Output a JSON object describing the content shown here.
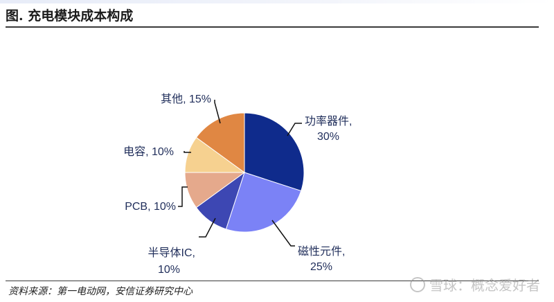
{
  "title": "图. 充电模块成本构成",
  "source": "资料来源：第一电动网，安信证券研究中心",
  "watermark": "雪球：概念爱好者",
  "chart_data": {
    "type": "pie",
    "title": "",
    "slices": [
      {
        "label": "功率器件",
        "value": 30,
        "display": [
          "功率器件,",
          "30%"
        ],
        "color": "#0f2b8c"
      },
      {
        "label": "磁性元件",
        "value": 25,
        "display": [
          "磁性元件,",
          "25%"
        ],
        "color": "#7b82f6"
      },
      {
        "label": "半导体IC",
        "value": 10,
        "display": [
          "半导体IC,",
          "10%"
        ],
        "color": "#3d47b3"
      },
      {
        "label": "PCB",
        "value": 10,
        "display": [
          "PCB, 10%"
        ],
        "color": "#e5a98c"
      },
      {
        "label": "电容",
        "value": 10,
        "display": [
          "电容, 10%"
        ],
        "color": "#f6d190"
      },
      {
        "label": "其他",
        "value": 15,
        "display": [
          "其他, 15%"
        ],
        "color": "#e08743"
      }
    ]
  }
}
